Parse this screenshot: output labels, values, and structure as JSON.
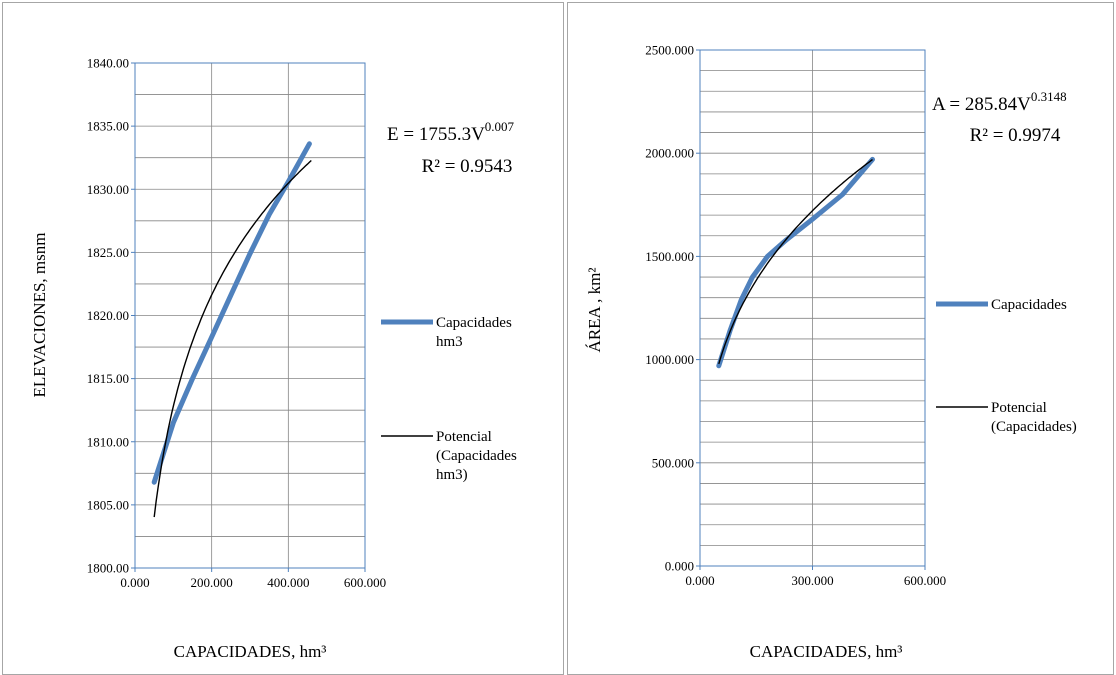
{
  "chart_data": [
    {
      "type": "line",
      "xlabel": "CAPACIDADES, hm³",
      "ylabel": "ELEVACIONES, msnm",
      "xlim": [
        0,
        600
      ],
      "ylim": [
        1800,
        1840
      ],
      "x_ticks": [
        "0.000",
        "200.000",
        "400.000",
        "600.000"
      ],
      "y_ticks": [
        "1800.00",
        "1805.00",
        "1810.00",
        "1815.00",
        "1820.00",
        "1825.00",
        "1830.00",
        "1835.00",
        "1840.00"
      ],
      "grid": true,
      "series": [
        {
          "name": "Capacidades hm3",
          "legend_lines": [
            "Capacidades",
            "hm3"
          ],
          "color": "#4f81bd",
          "x": [
            50,
            100,
            150,
            200,
            250,
            300,
            350,
            400,
            455
          ],
          "y": [
            1806.8,
            1811.5,
            1815.0,
            1818.3,
            1821.6,
            1824.9,
            1828.0,
            1830.6,
            1833.6
          ]
        },
        {
          "name": "Potencial (Capacidades hm3)",
          "legend_lines": [
            "Potencial",
            "(Capacidades",
            "hm3)"
          ],
          "color": "#000000",
          "fit": {
            "coef": 1755.3,
            "exp": 0.007
          },
          "x_range": [
            50,
            460
          ]
        }
      ],
      "equation": {
        "lhs": "E = 1755.3V",
        "exponent": "0.007",
        "r2": "R² = 0.9543"
      },
      "legend_position": "right"
    },
    {
      "type": "line",
      "xlabel": "CAPACIDADES, hm³",
      "ylabel": "ÁREA , km²",
      "xlim": [
        0,
        600
      ],
      "ylim": [
        0,
        2500
      ],
      "x_ticks": [
        "0.000",
        "300.000",
        "600.000"
      ],
      "y_ticks": [
        "0.000",
        "500.000",
        "1000.000",
        "1500.000",
        "2000.000",
        "2500.000"
      ],
      "grid": true,
      "series": [
        {
          "name": "Capacidades",
          "legend_lines": [
            "Capacidades"
          ],
          "color": "#4f81bd",
          "x": [
            50,
            80,
            110,
            140,
            180,
            230,
            300,
            380,
            460
          ],
          "y": [
            970,
            1140,
            1290,
            1400,
            1500,
            1580,
            1680,
            1800,
            1970
          ]
        },
        {
          "name": "Potencial (Capacidades)",
          "legend_lines": [
            "Potencial",
            "(Capacidades)"
          ],
          "color": "#000000",
          "fit": {
            "coef": 285.84,
            "exp": 0.3148
          },
          "x_range": [
            50,
            460
          ]
        }
      ],
      "equation": {
        "lhs": "A = 285.84V",
        "exponent": "0.3148",
        "r2": "R² = 0.9974"
      },
      "legend_position": "right"
    }
  ]
}
